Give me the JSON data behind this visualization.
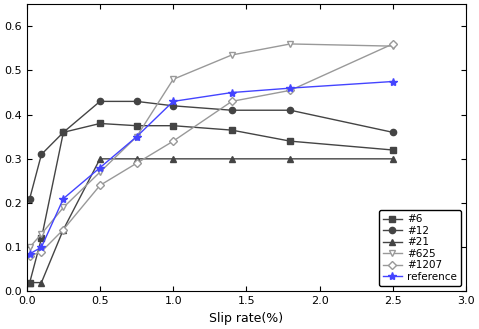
{
  "title": "",
  "xlabel": "Slip rate(%)",
  "ylabel": "",
  "xlim": [
    0.0,
    3.0
  ],
  "ylim": [
    0.0,
    0.65
  ],
  "xticks": [
    0.0,
    0.5,
    1.0,
    1.5,
    2.0,
    2.5,
    3.0
  ],
  "yticks": [
    0.0,
    0.1,
    0.2,
    0.3,
    0.4,
    0.5,
    0.6
  ],
  "series": [
    {
      "label": "#6",
      "x": [
        0.02,
        0.1,
        0.25,
        0.5,
        0.75,
        1.0,
        1.4,
        1.8,
        2.5
      ],
      "y": [
        0.02,
        0.12,
        0.36,
        0.38,
        0.375,
        0.375,
        0.365,
        0.34,
        0.32
      ],
      "color": "#444444",
      "marker": "s",
      "marker_fc": "#444444",
      "marker_ec": "#444444",
      "linestyle": "-",
      "linewidth": 1.0,
      "markersize": 4.5
    },
    {
      "label": "#12",
      "x": [
        0.02,
        0.1,
        0.25,
        0.5,
        0.75,
        1.0,
        1.4,
        1.8,
        2.5
      ],
      "y": [
        0.21,
        0.31,
        0.36,
        0.43,
        0.43,
        0.42,
        0.41,
        0.41,
        0.36
      ],
      "color": "#444444",
      "marker": "o",
      "marker_fc": "#444444",
      "marker_ec": "#444444",
      "linestyle": "-",
      "linewidth": 1.0,
      "markersize": 4.5
    },
    {
      "label": "#21",
      "x": [
        0.02,
        0.1,
        0.25,
        0.5,
        0.75,
        1.0,
        1.4,
        1.8,
        2.5
      ],
      "y": [
        0.02,
        0.02,
        0.14,
        0.3,
        0.3,
        0.3,
        0.3,
        0.3,
        0.3
      ],
      "color": "#444444",
      "marker": "^",
      "marker_fc": "#444444",
      "marker_ec": "#444444",
      "linestyle": "-",
      "linewidth": 1.0,
      "markersize": 4.5
    },
    {
      "label": "#625",
      "x": [
        0.02,
        0.1,
        0.25,
        0.5,
        0.75,
        1.0,
        1.4,
        1.8,
        2.5
      ],
      "y": [
        0.1,
        0.13,
        0.19,
        0.27,
        0.35,
        0.48,
        0.535,
        0.56,
        0.555
      ],
      "color": "#999999",
      "marker": "v",
      "marker_fc": "white",
      "marker_ec": "#999999",
      "linestyle": "-",
      "linewidth": 1.0,
      "markersize": 5
    },
    {
      "label": "#1207",
      "x": [
        0.02,
        0.1,
        0.25,
        0.5,
        0.75,
        1.0,
        1.4,
        1.8,
        2.5
      ],
      "y": [
        0.08,
        0.09,
        0.14,
        0.24,
        0.29,
        0.34,
        0.43,
        0.455,
        0.56
      ],
      "color": "#999999",
      "marker": "D",
      "marker_fc": "white",
      "marker_ec": "#999999",
      "linestyle": "-",
      "linewidth": 1.0,
      "markersize": 4
    },
    {
      "label": "reference",
      "x": [
        0.02,
        0.1,
        0.25,
        0.5,
        0.75,
        1.0,
        1.4,
        1.8,
        2.5
      ],
      "y": [
        0.085,
        0.1,
        0.21,
        0.28,
        0.35,
        0.43,
        0.45,
        0.46,
        0.475
      ],
      "color": "#4444ff",
      "marker": "*",
      "marker_fc": "#4444ff",
      "marker_ec": "#4444ff",
      "linestyle": "-",
      "linewidth": 1.0,
      "markersize": 6
    }
  ],
  "legend_loc": "lower right",
  "background_color": "#ffffff"
}
